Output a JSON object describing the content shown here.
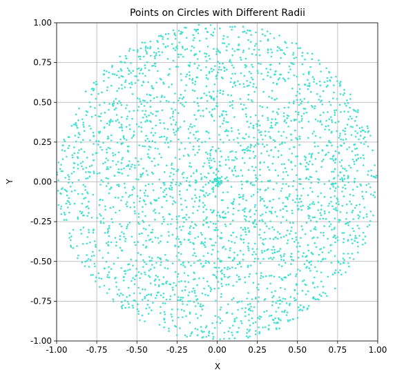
{
  "chart_data": {
    "type": "scatter",
    "title": "Points on Circles with Different Radii",
    "xlabel": "X",
    "ylabel": "Y",
    "xlim": [
      -1.0,
      1.0
    ],
    "ylim": [
      -1.0,
      1.0
    ],
    "grid": true,
    "aspect": "equal",
    "x_ticks": [
      "-1.00",
      "-0.75",
      "-0.50",
      "-0.25",
      "0.00",
      "0.25",
      "0.50",
      "0.75",
      "1.00"
    ],
    "y_ticks": [
      "-1.00",
      "-0.75",
      "-0.50",
      "-0.25",
      "0.00",
      "0.25",
      "0.50",
      "0.75",
      "1.00"
    ],
    "series": [
      {
        "color": "#40E0D0",
        "distribution": "points on concentric circles, uniformly filling the unit disk",
        "max_radius": 1.0,
        "approx_point_count": 3000,
        "central_cluster": {
          "x": 0.0,
          "y": 0.0
        }
      }
    ]
  }
}
